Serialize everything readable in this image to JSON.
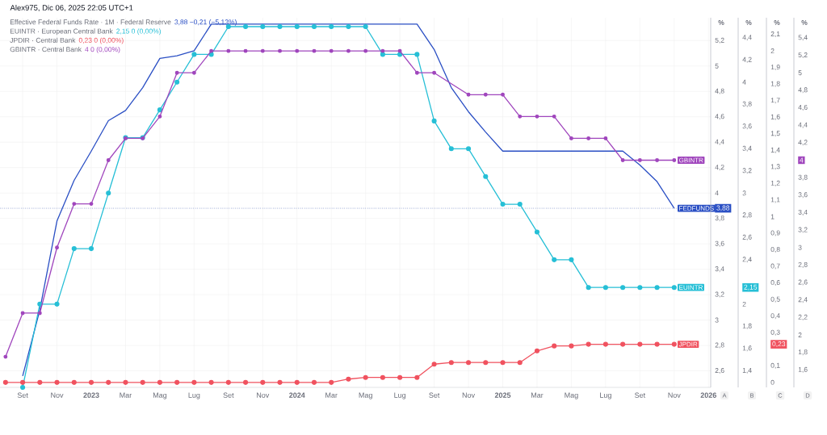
{
  "chart_data": [
    {
      "type": "line",
      "annotations": [
        "Alex975, Dic 06, 2025 22:05 UTC+1",
        "Effective Federal Funds Rate · 1M · Federal Reserve",
        "EUINTR · European Central Bank",
        "JPDIR · Central Bank",
        "3,88  −0,21 (−5,13%)",
        "2,15  0 (0,00%)",
        "0,23  0 (0,00%)",
        "A",
        "B",
        "C"
      ],
      "ylabel": "%",
      "y2label": "%",
      "y3label": "%",
      "x": [
        "2022-08",
        "2022-09",
        "2022-10",
        "2022-11",
        "2022-12",
        "2023-01",
        "2023-02",
        "2023-03",
        "2023-04",
        "2023-05",
        "2023-06",
        "2023-07",
        "2023-08",
        "2023-09",
        "2023-10",
        "2023-11",
        "2023-12",
        "2024-01",
        "2024-02",
        "2024-03",
        "2024-04",
        "2024-05",
        "2024-06",
        "2024-07",
        "2024-08",
        "2024-09",
        "2024-10",
        "2024-11",
        "2024-12",
        "2025-01",
        "2025-02",
        "2025-03",
        "2025-04",
        "2025-05",
        "2025-06",
        "2025-07",
        "2025-08",
        "2025-09",
        "2025-10",
        "2025-11"
      ],
      "xlim": [
        "2022-07-22",
        "2026-01-05"
      ],
      "xticks": [
        {
          "value": "2022-09",
          "label": "Set"
        },
        {
          "value": "2022-11",
          "label": "Nov"
        },
        {
          "value": "2023-01",
          "label": "2023"
        },
        {
          "value": "2023-03",
          "label": "Mar"
        },
        {
          "value": "2023-05",
          "label": "Mag"
        },
        {
          "value": "2023-07",
          "label": "Lug"
        },
        {
          "value": "2023-09",
          "label": "Set"
        },
        {
          "value": "2023-11",
          "label": "Nov"
        },
        {
          "value": "2024-01",
          "label": "2024"
        },
        {
          "value": "2024-03",
          "label": "Mar"
        },
        {
          "value": "2024-05",
          "label": "Mag"
        },
        {
          "value": "2024-07",
          "label": "Lug"
        },
        {
          "value": "2024-09",
          "label": "Set"
        },
        {
          "value": "2024-11",
          "label": "Nov"
        },
        {
          "value": "2025-01",
          "label": "2025"
        },
        {
          "value": "2025-03",
          "label": "Mar"
        },
        {
          "value": "2025-05",
          "label": "Mag"
        },
        {
          "value": "2025-07",
          "label": "Lug"
        },
        {
          "value": "2025-09",
          "label": "Set"
        },
        {
          "value": "2025-11",
          "label": "Nov"
        },
        {
          "value": "2026-01",
          "label": "2026"
        }
      ],
      "ylim": [
        2.47,
        5.38
      ],
      "yticks": [
        {
          "value": 2.6,
          "label": "2,6"
        },
        {
          "value": 2.8,
          "label": "2,8"
        },
        3,
        {
          "value": 3.2,
          "label": "3,2"
        },
        {
          "value": 3.4,
          "label": "3,4"
        },
        {
          "value": 3.6,
          "label": "3,6"
        },
        {
          "value": 3.8,
          "label": "3,8"
        },
        {
          "value": 3.88,
          "label": "3,88"
        },
        4,
        {
          "value": 4.2,
          "label": "4,2"
        },
        {
          "value": 4.4,
          "label": "4,4"
        },
        {
          "value": 4.6,
          "label": "4,6"
        },
        {
          "value": 4.8,
          "label": "4,8"
        },
        5,
        {
          "value": 5.2,
          "label": "5,2"
        }
      ],
      "y2lim": [
        1.25,
        4.58
      ],
      "y2ticks": [
        {
          "value": 1.4,
          "label": "1,4"
        },
        {
          "value": 1.6,
          "label": "1,6"
        },
        {
          "value": 1.8,
          "label": "1,8"
        },
        2,
        {
          "value": 2.15,
          "label": "2,15"
        },
        {
          "value": 2.4,
          "label": "2,4"
        },
        {
          "value": 2.6,
          "label": "2,6"
        },
        {
          "value": 2.8,
          "label": "2,8"
        },
        3,
        {
          "value": 3.2,
          "label": "3,2"
        },
        {
          "value": 3.4,
          "label": "3,4"
        },
        {
          "value": 3.6,
          "label": "3,6"
        },
        {
          "value": 3.8,
          "label": "3,8"
        },
        4,
        {
          "value": 4.2,
          "label": "4,2"
        },
        {
          "value": 4.4,
          "label": "4,4"
        }
      ],
      "y3lim": [
        -0.03,
        2.2
      ],
      "y3ticks": [
        0,
        {
          "value": 0.1,
          "label": "0,1"
        },
        {
          "value": 0.23,
          "label": "0,23"
        },
        {
          "value": 0.3,
          "label": "0,3"
        },
        {
          "value": 0.4,
          "label": "0,4"
        },
        {
          "value": 0.5,
          "label": "0,5"
        },
        {
          "value": 0.6,
          "label": "0,6"
        },
        {
          "value": 0.7,
          "label": "0,7"
        },
        {
          "value": 0.8,
          "label": "0,8"
        },
        {
          "value": 0.9,
          "label": "0,9"
        },
        1,
        {
          "value": 1.1,
          "label": "1,1"
        },
        {
          "value": 1.2,
          "label": "1,2"
        },
        {
          "value": 1.3,
          "label": "1,3"
        },
        {
          "value": 1.4,
          "label": "1,4"
        },
        {
          "value": 1.5,
          "label": "1,5"
        },
        {
          "value": 1.6,
          "label": "1,6"
        },
        {
          "value": 1.7,
          "label": "1,7"
        },
        {
          "value": 1.8,
          "label": "1,8"
        },
        {
          "value": 1.9,
          "label": "1,9"
        },
        2,
        {
          "value": 2.1,
          "label": "2,1"
        }
      ],
      "grid": true,
      "ref_lines": [
        {
          "axis": "y",
          "value": 3.88,
          "color": "#2a4fc4",
          "line_style": "dotted"
        }
      ],
      "series": [
        {
          "name": "FEDFUNDS",
          "color": "#2a4fc4",
          "axis": "y",
          "marker": "none",
          "values": [
            null,
            2.56,
            3.08,
            3.78,
            4.1,
            4.33,
            4.57,
            4.65,
            4.83,
            5.06,
            5.08,
            5.12,
            5.33,
            5.33,
            5.33,
            5.33,
            5.33,
            5.33,
            5.33,
            5.33,
            5.33,
            5.33,
            5.33,
            5.33,
            5.33,
            5.13,
            4.83,
            4.64,
            4.48,
            4.33,
            4.33,
            4.33,
            4.33,
            4.33,
            4.33,
            4.33,
            4.33,
            4.22,
            4.09,
            3.88
          ]
        },
        {
          "name": "EUINTR",
          "color": "#26bfd6",
          "axis": "y2",
          "marker": "circle",
          "values": [
            null,
            1.25,
            2.0,
            2.0,
            2.5,
            2.5,
            3.0,
            3.5,
            3.5,
            3.75,
            4.0,
            4.25,
            4.25,
            4.5,
            4.5,
            4.5,
            4.5,
            4.5,
            4.5,
            4.5,
            4.5,
            4.5,
            4.25,
            4.25,
            4.25,
            3.65,
            3.4,
            3.4,
            3.15,
            2.9,
            2.9,
            2.65,
            2.4,
            2.4,
            2.15,
            2.15,
            2.15,
            2.15,
            2.15,
            2.15
          ]
        },
        {
          "name": "JPDIR",
          "color": "#f0525f",
          "axis": "y3",
          "marker": "circle",
          "values": [
            0,
            0,
            0,
            0,
            0,
            0,
            0,
            0,
            0,
            0,
            0,
            0,
            0,
            0,
            0,
            0,
            0,
            0,
            0,
            0,
            0.02,
            0.03,
            0.03,
            0.03,
            0.03,
            0.11,
            0.12,
            0.12,
            0.12,
            0.12,
            0.12,
            0.19,
            0.22,
            0.22,
            0.23,
            0.23,
            0.23,
            0.23,
            0.23,
            0.23
          ]
        }
      ]
    },
    {
      "type": "line",
      "annotations": [
        "GBINTR · Central Bank",
        "4  0 (0,00%)",
        "D"
      ],
      "ylabel": "%",
      "tick_labels": "y",
      "x": [
        "2022-08",
        "2022-09",
        "2022-10",
        "2022-11",
        "2022-12",
        "2023-01",
        "2023-02",
        "2023-03",
        "2023-04",
        "2023-05",
        "2023-06",
        "2023-07",
        "2023-08",
        "2023-09",
        "2023-10",
        "2023-11",
        "2023-12",
        "2024-01",
        "2024-02",
        "2024-03",
        "2024-04",
        "2024-05",
        "2024-06",
        "2024-07",
        "2024-08",
        "2024-09",
        "2024-11",
        "2024-12",
        "2025-01",
        "2025-02",
        "2025-03",
        "2025-04",
        "2025-05",
        "2025-06",
        "2025-07",
        "2025-08",
        "2025-09",
        "2025-10",
        "2025-11"
      ],
      "xlim": [
        "2022-07-22",
        "2026-01-05"
      ],
      "ylim": [
        1.4,
        5.63
      ],
      "yticks": [
        {
          "value": 1.6,
          "label": "1,6"
        },
        {
          "value": 1.8,
          "label": "1,8"
        },
        2,
        {
          "value": 2.2,
          "label": "2,2"
        },
        {
          "value": 2.4,
          "label": "2,4"
        },
        {
          "value": 2.6,
          "label": "2,6"
        },
        {
          "value": 2.8,
          "label": "2,8"
        },
        3,
        {
          "value": 3.2,
          "label": "3,2"
        },
        {
          "value": 3.4,
          "label": "3,4"
        },
        {
          "value": 3.6,
          "label": "3,6"
        },
        {
          "value": 3.8,
          "label": "3,8"
        },
        4,
        {
          "value": 4.2,
          "label": "4,2"
        },
        {
          "value": 4.4,
          "label": "4,4"
        },
        {
          "value": 4.6,
          "label": "4,6"
        },
        {
          "value": 4.8,
          "label": "4,8"
        },
        5,
        {
          "value": 5.2,
          "label": "5,2"
        },
        {
          "value": 5.4,
          "label": "5,4"
        }
      ],
      "series": [
        {
          "name": "GBINTR",
          "color": "#a046bd",
          "marker": "circle",
          "values": [
            1.75,
            2.25,
            2.25,
            3.0,
            3.5,
            3.5,
            4.0,
            4.25,
            4.25,
            4.5,
            5.0,
            5.0,
            5.25,
            5.25,
            5.25,
            5.25,
            5.25,
            5.25,
            5.25,
            5.25,
            5.25,
            5.25,
            5.25,
            5.25,
            5.0,
            5.0,
            4.75,
            4.75,
            4.75,
            4.5,
            4.5,
            4.5,
            4.25,
            4.25,
            4.25,
            4.0,
            4.0,
            4.0,
            4.0
          ]
        }
      ]
    }
  ]
}
